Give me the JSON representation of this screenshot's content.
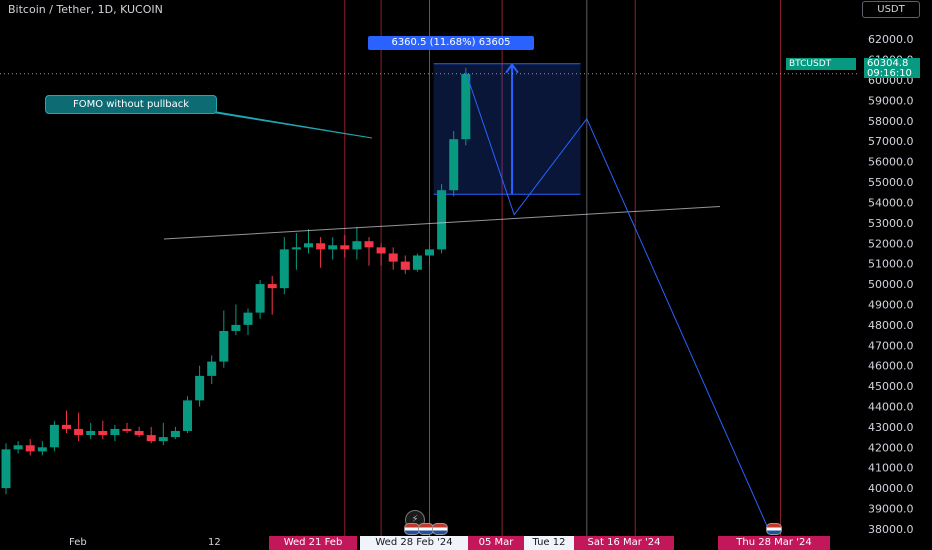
{
  "title": "Bitcoin / Tether, 1D, KUCOIN",
  "currency": "USDT",
  "colors": {
    "up": "#089981",
    "down": "#f23645",
    "accent": "#2962ff",
    "bg": "#000000"
  },
  "annotation": "FOMO without pullback",
  "range_label": "6360.5 (11.68%) 63605",
  "symbol_tag": "BTCUSDT",
  "last_price": "60304.8",
  "countdown": "09:16:10",
  "x_labels": [
    {
      "text": "Feb",
      "date": "2024-02-01"
    },
    {
      "text": "12",
      "date": "2024-02-12"
    }
  ],
  "date_pills": [
    {
      "text": "Wed 21 Feb",
      "date": "2024-02-21",
      "style": "red"
    },
    {
      "text": "Wed 28 Feb '24",
      "date": "2024-02-28",
      "style": "white"
    },
    {
      "text": "05 Mar",
      "date": "2024-03-05",
      "style": "red"
    },
    {
      "text": "Tue 12",
      "date": "2024-03-12",
      "style": "white"
    },
    {
      "text": "Sat 16 Mar '24",
      "date": "2024-03-16",
      "style": "red"
    },
    {
      "text": "Thu 28 Mar '24",
      "date": "2024-03-28",
      "style": "red"
    }
  ],
  "chart_data": {
    "type": "candlestick",
    "x_range": [
      "2024-01-24",
      "2024-04-01"
    ],
    "y_range": [
      37800,
      62500
    ],
    "y_ticks": [
      38000,
      39000,
      40000,
      41000,
      42000,
      43000,
      44000,
      45000,
      46000,
      47000,
      48000,
      49000,
      50000,
      51000,
      52000,
      53000,
      54000,
      55000,
      56000,
      57000,
      58000,
      59000,
      60000,
      61000,
      62000
    ],
    "y_tick_labels": [
      "38000.0",
      "39000.0",
      "40000.0",
      "41000.0",
      "42000.0",
      "43000.0",
      "44000.0",
      "45000.0",
      "46000.0",
      "47000.0",
      "48000.0",
      "49000.0",
      "50000.0",
      "51000.0",
      "52000.0",
      "53000.0",
      "54000.0",
      "55000.0",
      "56000.0",
      "57000.0",
      "58000.0",
      "59000.0",
      "60000.0",
      "61000.0",
      "62000.0"
    ],
    "candles": [
      {
        "date": "2024-01-24",
        "open": 40000,
        "high": 42200,
        "low": 39700,
        "close": 41900
      },
      {
        "date": "2024-01-25",
        "open": 41900,
        "high": 42300,
        "low": 41700,
        "close": 42100
      },
      {
        "date": "2024-01-26",
        "open": 42100,
        "high": 42400,
        "low": 41600,
        "close": 41800
      },
      {
        "date": "2024-01-27",
        "open": 41800,
        "high": 42300,
        "low": 41600,
        "close": 42000
      },
      {
        "date": "2024-01-28",
        "open": 42000,
        "high": 43300,
        "low": 41800,
        "close": 43100
      },
      {
        "date": "2024-01-29",
        "open": 43100,
        "high": 43800,
        "low": 42700,
        "close": 42900
      },
      {
        "date": "2024-01-30",
        "open": 42900,
        "high": 43700,
        "low": 42300,
        "close": 42600
      },
      {
        "date": "2024-01-31",
        "open": 42600,
        "high": 43200,
        "low": 42400,
        "close": 42800
      },
      {
        "date": "2024-02-01",
        "open": 42800,
        "high": 43300,
        "low": 42400,
        "close": 42600
      },
      {
        "date": "2024-02-02",
        "open": 42600,
        "high": 43100,
        "low": 42300,
        "close": 42900
      },
      {
        "date": "2024-02-03",
        "open": 42900,
        "high": 43200,
        "low": 42700,
        "close": 42800
      },
      {
        "date": "2024-02-04",
        "open": 42800,
        "high": 43000,
        "low": 42500,
        "close": 42600
      },
      {
        "date": "2024-02-05",
        "open": 42600,
        "high": 43000,
        "low": 42200,
        "close": 42300
      },
      {
        "date": "2024-02-06",
        "open": 42300,
        "high": 43200,
        "low": 42100,
        "close": 42500
      },
      {
        "date": "2024-02-07",
        "open": 42500,
        "high": 43000,
        "low": 42400,
        "close": 42800
      },
      {
        "date": "2024-02-08",
        "open": 42800,
        "high": 44500,
        "low": 42700,
        "close": 44300
      },
      {
        "date": "2024-02-09",
        "open": 44300,
        "high": 46000,
        "low": 44000,
        "close": 45500
      },
      {
        "date": "2024-02-10",
        "open": 45500,
        "high": 46500,
        "low": 45100,
        "close": 46200
      },
      {
        "date": "2024-02-11",
        "open": 46200,
        "high": 48700,
        "low": 45900,
        "close": 47700
      },
      {
        "date": "2024-02-12",
        "open": 47700,
        "high": 49000,
        "low": 47500,
        "close": 48000
      },
      {
        "date": "2024-02-13",
        "open": 48000,
        "high": 48800,
        "low": 47500,
        "close": 48600
      },
      {
        "date": "2024-02-14",
        "open": 48600,
        "high": 50200,
        "low": 48300,
        "close": 50000
      },
      {
        "date": "2024-02-15",
        "open": 50000,
        "high": 50400,
        "low": 48500,
        "close": 49800
      },
      {
        "date": "2024-02-16",
        "open": 49800,
        "high": 52300,
        "low": 49500,
        "close": 51700
      },
      {
        "date": "2024-02-17",
        "open": 51700,
        "high": 52500,
        "low": 50700,
        "close": 51800
      },
      {
        "date": "2024-02-18",
        "open": 51800,
        "high": 52700,
        "low": 51500,
        "close": 52000
      },
      {
        "date": "2024-02-19",
        "open": 52000,
        "high": 52300,
        "low": 50800,
        "close": 51700
      },
      {
        "date": "2024-02-20",
        "open": 51700,
        "high": 52300,
        "low": 51200,
        "close": 51900
      },
      {
        "date": "2024-02-21",
        "open": 51900,
        "high": 52400,
        "low": 51300,
        "close": 51700
      },
      {
        "date": "2024-02-22",
        "open": 51700,
        "high": 52800,
        "low": 51200,
        "close": 52100
      },
      {
        "date": "2024-02-23",
        "open": 52100,
        "high": 52300,
        "low": 50900,
        "close": 51800
      },
      {
        "date": "2024-02-24",
        "open": 51800,
        "high": 52000,
        "low": 50900,
        "close": 51500
      },
      {
        "date": "2024-02-25",
        "open": 51500,
        "high": 51800,
        "low": 50700,
        "close": 51100
      },
      {
        "date": "2024-02-26",
        "open": 51100,
        "high": 51400,
        "low": 50500,
        "close": 50700
      },
      {
        "date": "2024-02-27",
        "open": 50700,
        "high": 51500,
        "low": 50600,
        "close": 51400
      },
      {
        "date": "2024-02-28",
        "open": 51400,
        "high": 51900,
        "low": 50900,
        "close": 51700
      },
      {
        "date": "2024-02-29",
        "open": 51700,
        "high": 54900,
        "low": 51500,
        "close": 54600
      },
      {
        "date": "2024-03-01",
        "open": 54600,
        "high": 57500,
        "low": 54300,
        "close": 57100
      },
      {
        "date": "2024-03-02",
        "open": 57100,
        "high": 60600,
        "low": 56800,
        "close": 60300
      }
    ],
    "levels": {
      "range_low": 54400,
      "range_high": 60800,
      "range_from": "2024-02-29",
      "range_to": "2024-03-09"
    },
    "trendline": [
      {
        "date": "2024-02-12",
        "price": 52500
      },
      {
        "date": "2024-03-23",
        "price": 53800
      }
    ],
    "projection_path": [
      {
        "date": "2024-03-02",
        "price": 60400
      },
      {
        "date": "2024-03-06",
        "price": 53400
      },
      {
        "date": "2024-03-12",
        "price": 58100
      },
      {
        "date": "2024-03-27",
        "price": 38000
      }
    ],
    "vlines": [
      {
        "date": "2024-02-21",
        "color": "#f23645"
      },
      {
        "date": "2024-02-24",
        "color": "#f23645"
      },
      {
        "date": "2024-02-28",
        "color": "#9598a1"
      },
      {
        "date": "2024-03-05",
        "color": "#f23645"
      },
      {
        "date": "2024-03-12",
        "color": "#9598a1"
      },
      {
        "date": "2024-03-16",
        "color": "#f23645"
      },
      {
        "date": "2024-03-28",
        "color": "#f23645"
      }
    ]
  }
}
